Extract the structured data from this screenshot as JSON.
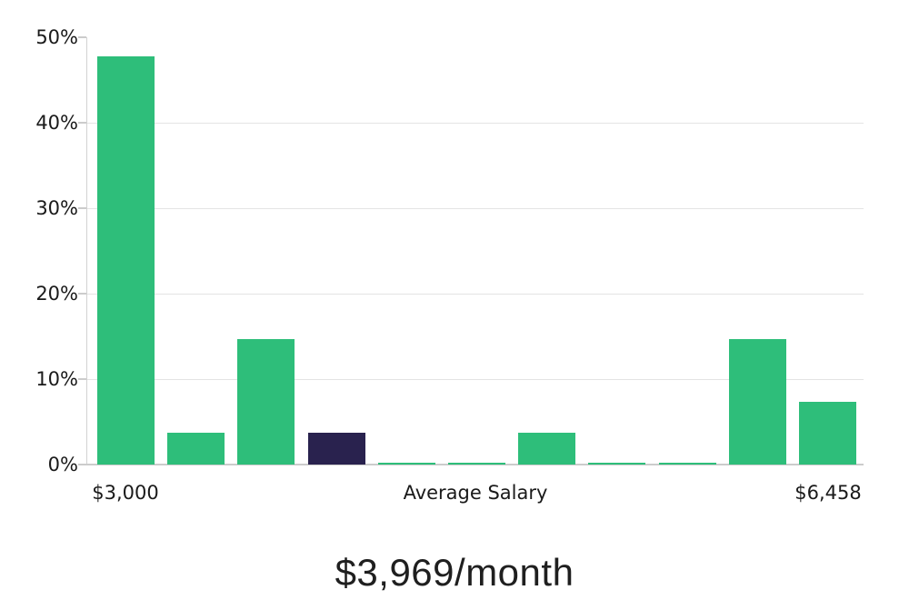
{
  "chart_data": {
    "type": "bar",
    "title": "$3,969/month",
    "num_bins": 11,
    "values": [
      47.8,
      3.7,
      14.7,
      3.7,
      0.2,
      0.2,
      3.7,
      0.2,
      0.2,
      14.7,
      7.3
    ],
    "highlighted_index": 3,
    "highlighted_meaning": "average salary bin",
    "x_axis": {
      "left_label": "$3,000",
      "center_label": "Average Salary",
      "right_label": "$6,458"
    },
    "y_axis": {
      "tick_labels": [
        "0%",
        "10%",
        "20%",
        "30%",
        "40%",
        "50%"
      ],
      "min": 0,
      "max": 50,
      "unit": "percent"
    },
    "colors": {
      "bar_green": "#2ebe7a",
      "bar_navy": "#29224e",
      "gridline": "#e4e4e4",
      "axis": "#cccccc",
      "text": "#1a1a1a"
    },
    "grid": true,
    "legend": false
  }
}
